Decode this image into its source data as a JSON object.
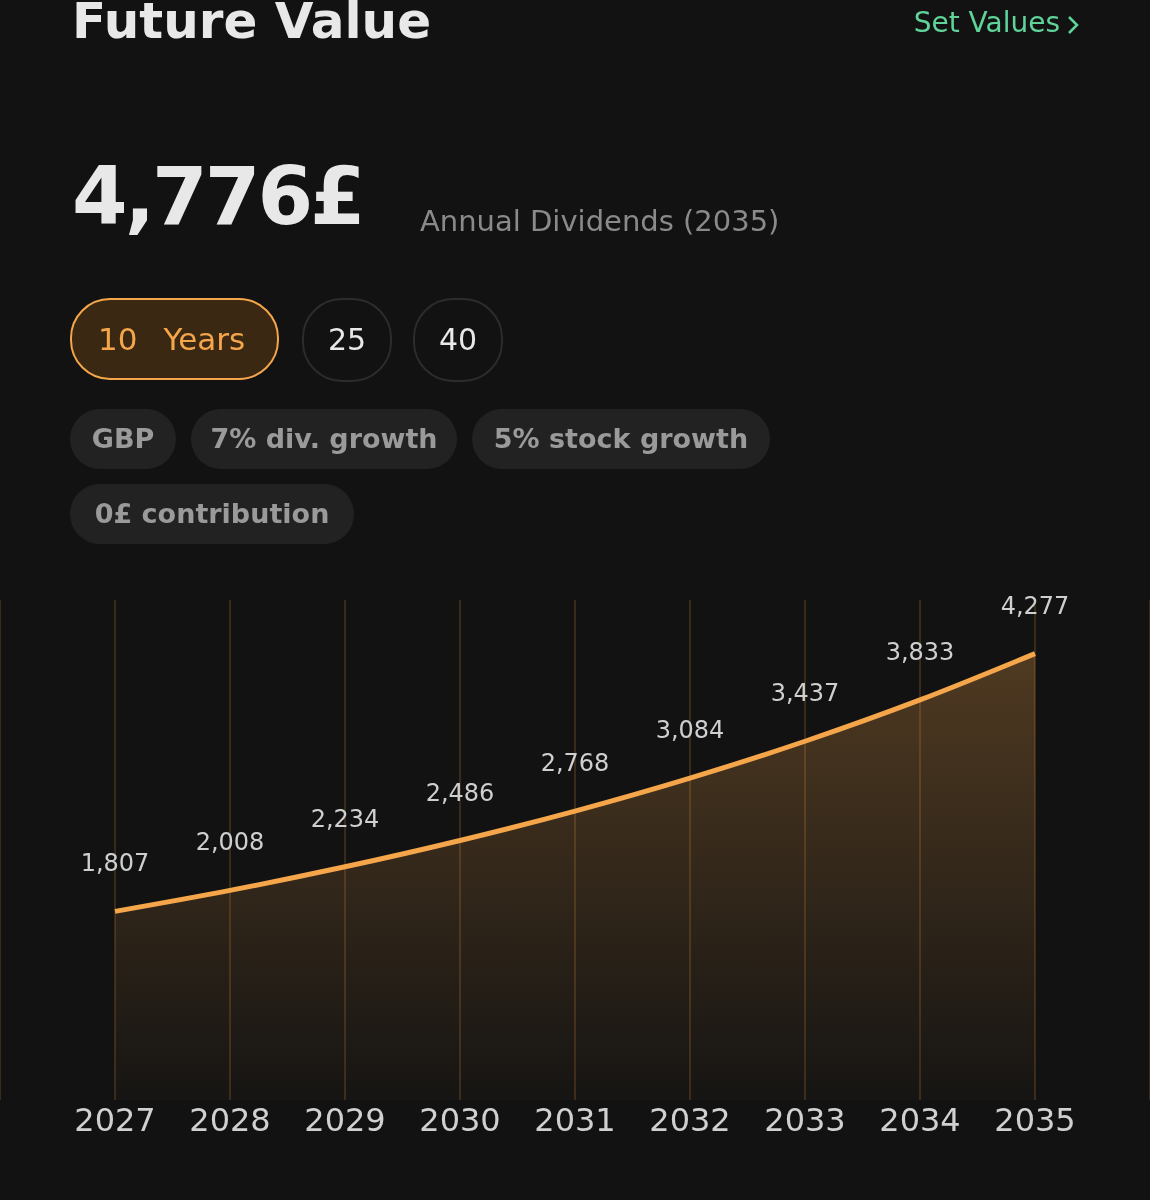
{
  "chart_data": {
    "type": "area",
    "title": "Future Value",
    "annotations": [
      "Set Values",
      "4,776£",
      "Annual Dividends (2035)",
      "10",
      "Years",
      "25",
      "40",
      "GBP",
      "7% div. growth",
      "5% stock growth",
      "0£ contribution"
    ],
    "categories": [
      "2027",
      "2028",
      "2029",
      "2030",
      "2031",
      "2032",
      "2033",
      "2034",
      "2035"
    ],
    "values": [
      1807,
      2008,
      2234,
      2486,
      2768,
      3084,
      3437,
      3833,
      4277
    ],
    "value_labels": [
      "1,807",
      "2,008",
      "2,234",
      "2,486",
      "2,768",
      "3,084",
      "3,437",
      "3,833",
      "4,277"
    ],
    "color": "#f5a54a",
    "grid": "x",
    "marker": "none"
  }
}
